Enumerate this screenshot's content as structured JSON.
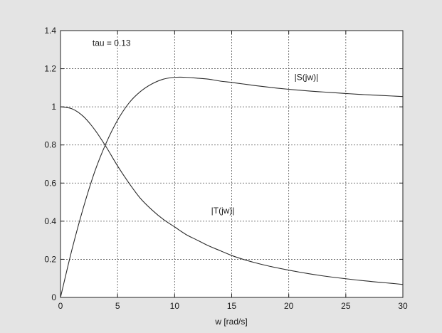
{
  "colors": {
    "figure_background": "#e4e4e4",
    "axes_background": "#ffffff",
    "line": "#2b2b2b",
    "grid": "#555555"
  },
  "chart_data": {
    "type": "line",
    "title": "",
    "xlabel": "w [rad/s]",
    "ylabel": "",
    "xlim": [
      0,
      30
    ],
    "ylim": [
      0,
      1.4
    ],
    "xticks": [
      0,
      5,
      10,
      15,
      20,
      25,
      30
    ],
    "yticks": [
      0,
      0.2,
      0.4,
      0.6,
      0.8,
      1,
      1.2,
      1.4
    ],
    "grid": true,
    "annotations": [
      {
        "text": "tau = 0.13",
        "x": 2.8,
        "y": 1.32
      },
      {
        "text": "|S(jw)|",
        "x": 20.5,
        "y": 1.14
      },
      {
        "text": "|T(jw)|",
        "x": 13.2,
        "y": 0.44
      }
    ],
    "series": [
      {
        "name": "|S(jw)|",
        "x": [
          0,
          1,
          2,
          3,
          4,
          5,
          6,
          7,
          8,
          9,
          10,
          11,
          12,
          13,
          14,
          15,
          16,
          17,
          18,
          19,
          20,
          21,
          22,
          23,
          24,
          25,
          26,
          27,
          28,
          29,
          30
        ],
        "values": [
          0,
          0.25,
          0.47,
          0.66,
          0.81,
          0.93,
          1.02,
          1.08,
          1.12,
          1.145,
          1.155,
          1.155,
          1.15,
          1.145,
          1.135,
          1.128,
          1.12,
          1.112,
          1.105,
          1.098,
          1.092,
          1.087,
          1.082,
          1.078,
          1.074,
          1.07,
          1.066,
          1.063,
          1.06,
          1.057,
          1.054
        ]
      },
      {
        "name": "|T(jw)|",
        "x": [
          0,
          1,
          2,
          3,
          4,
          5,
          6,
          7,
          8,
          9,
          10,
          11,
          12,
          13,
          14,
          15,
          16,
          17,
          18,
          19,
          20,
          21,
          22,
          23,
          24,
          25,
          26,
          27,
          28,
          29,
          30
        ],
        "values": [
          1.0,
          0.99,
          0.95,
          0.88,
          0.79,
          0.69,
          0.6,
          0.52,
          0.46,
          0.41,
          0.37,
          0.33,
          0.3,
          0.27,
          0.245,
          0.22,
          0.2,
          0.183,
          0.168,
          0.155,
          0.143,
          0.132,
          0.122,
          0.113,
          0.105,
          0.098,
          0.091,
          0.085,
          0.079,
          0.074,
          0.068
        ]
      }
    ]
  }
}
